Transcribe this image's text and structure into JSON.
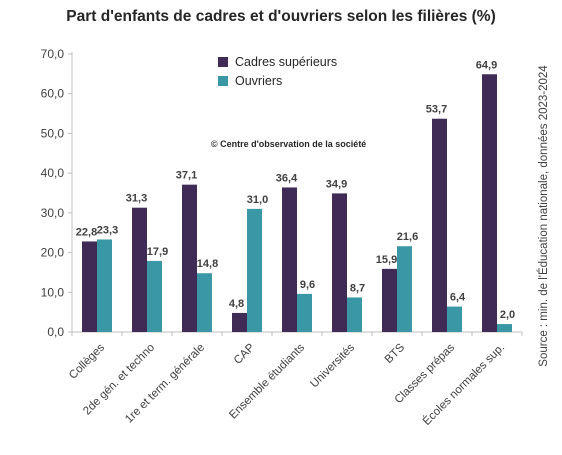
{
  "header": {
    "title": "Part d'enfants de cadres et d'ouvriers selon les filières (%)"
  },
  "annotations": {
    "copyright": "© Centre d'observation de la société",
    "source": "Source : min. de l'Éducation nationale, données 2023-2024"
  },
  "colors": {
    "cadres": "#3f2b55",
    "ouvriers": "#3a97a6",
    "axis": "#bfbfbf",
    "text": "#404040"
  },
  "chart_data": {
    "type": "bar",
    "title": "Part d'enfants de cadres et d'ouvriers selon les filières (%)",
    "xlabel": "",
    "ylabel": "",
    "ylim": [
      0,
      70
    ],
    "y_ticks": [
      "0,0",
      "10,0",
      "20,0",
      "30,0",
      "40,0",
      "50,0",
      "60,0",
      "70,0"
    ],
    "y_tick_values": [
      0,
      10,
      20,
      30,
      40,
      50,
      60,
      70
    ],
    "grid": false,
    "legend_position": "top-center",
    "categories": [
      "Collèges",
      "2de gén. et techno",
      "1re et term. générale",
      "CAP",
      "Ensemble étudiants",
      "Universités",
      "BTS",
      "Classes prépas",
      "Écoles normales sup."
    ],
    "series": [
      {
        "name": "Cadres supérieurs",
        "values": [
          22.8,
          31.3,
          37.1,
          4.8,
          36.4,
          34.9,
          15.9,
          53.7,
          64.9
        ],
        "labels": [
          "22,8",
          "31,3",
          "37,1",
          "4,8",
          "36,4",
          "34,9",
          "15,9",
          "53,7",
          "64,9"
        ]
      },
      {
        "name": "Ouvriers",
        "values": [
          23.3,
          17.9,
          14.8,
          31.0,
          9.6,
          8.7,
          21.6,
          6.4,
          2.0
        ],
        "labels": [
          "23,3",
          "17,9",
          "14,8",
          "31,0",
          "9,6",
          "8,7",
          "21,6",
          "6,4",
          "2,0"
        ]
      }
    ]
  }
}
